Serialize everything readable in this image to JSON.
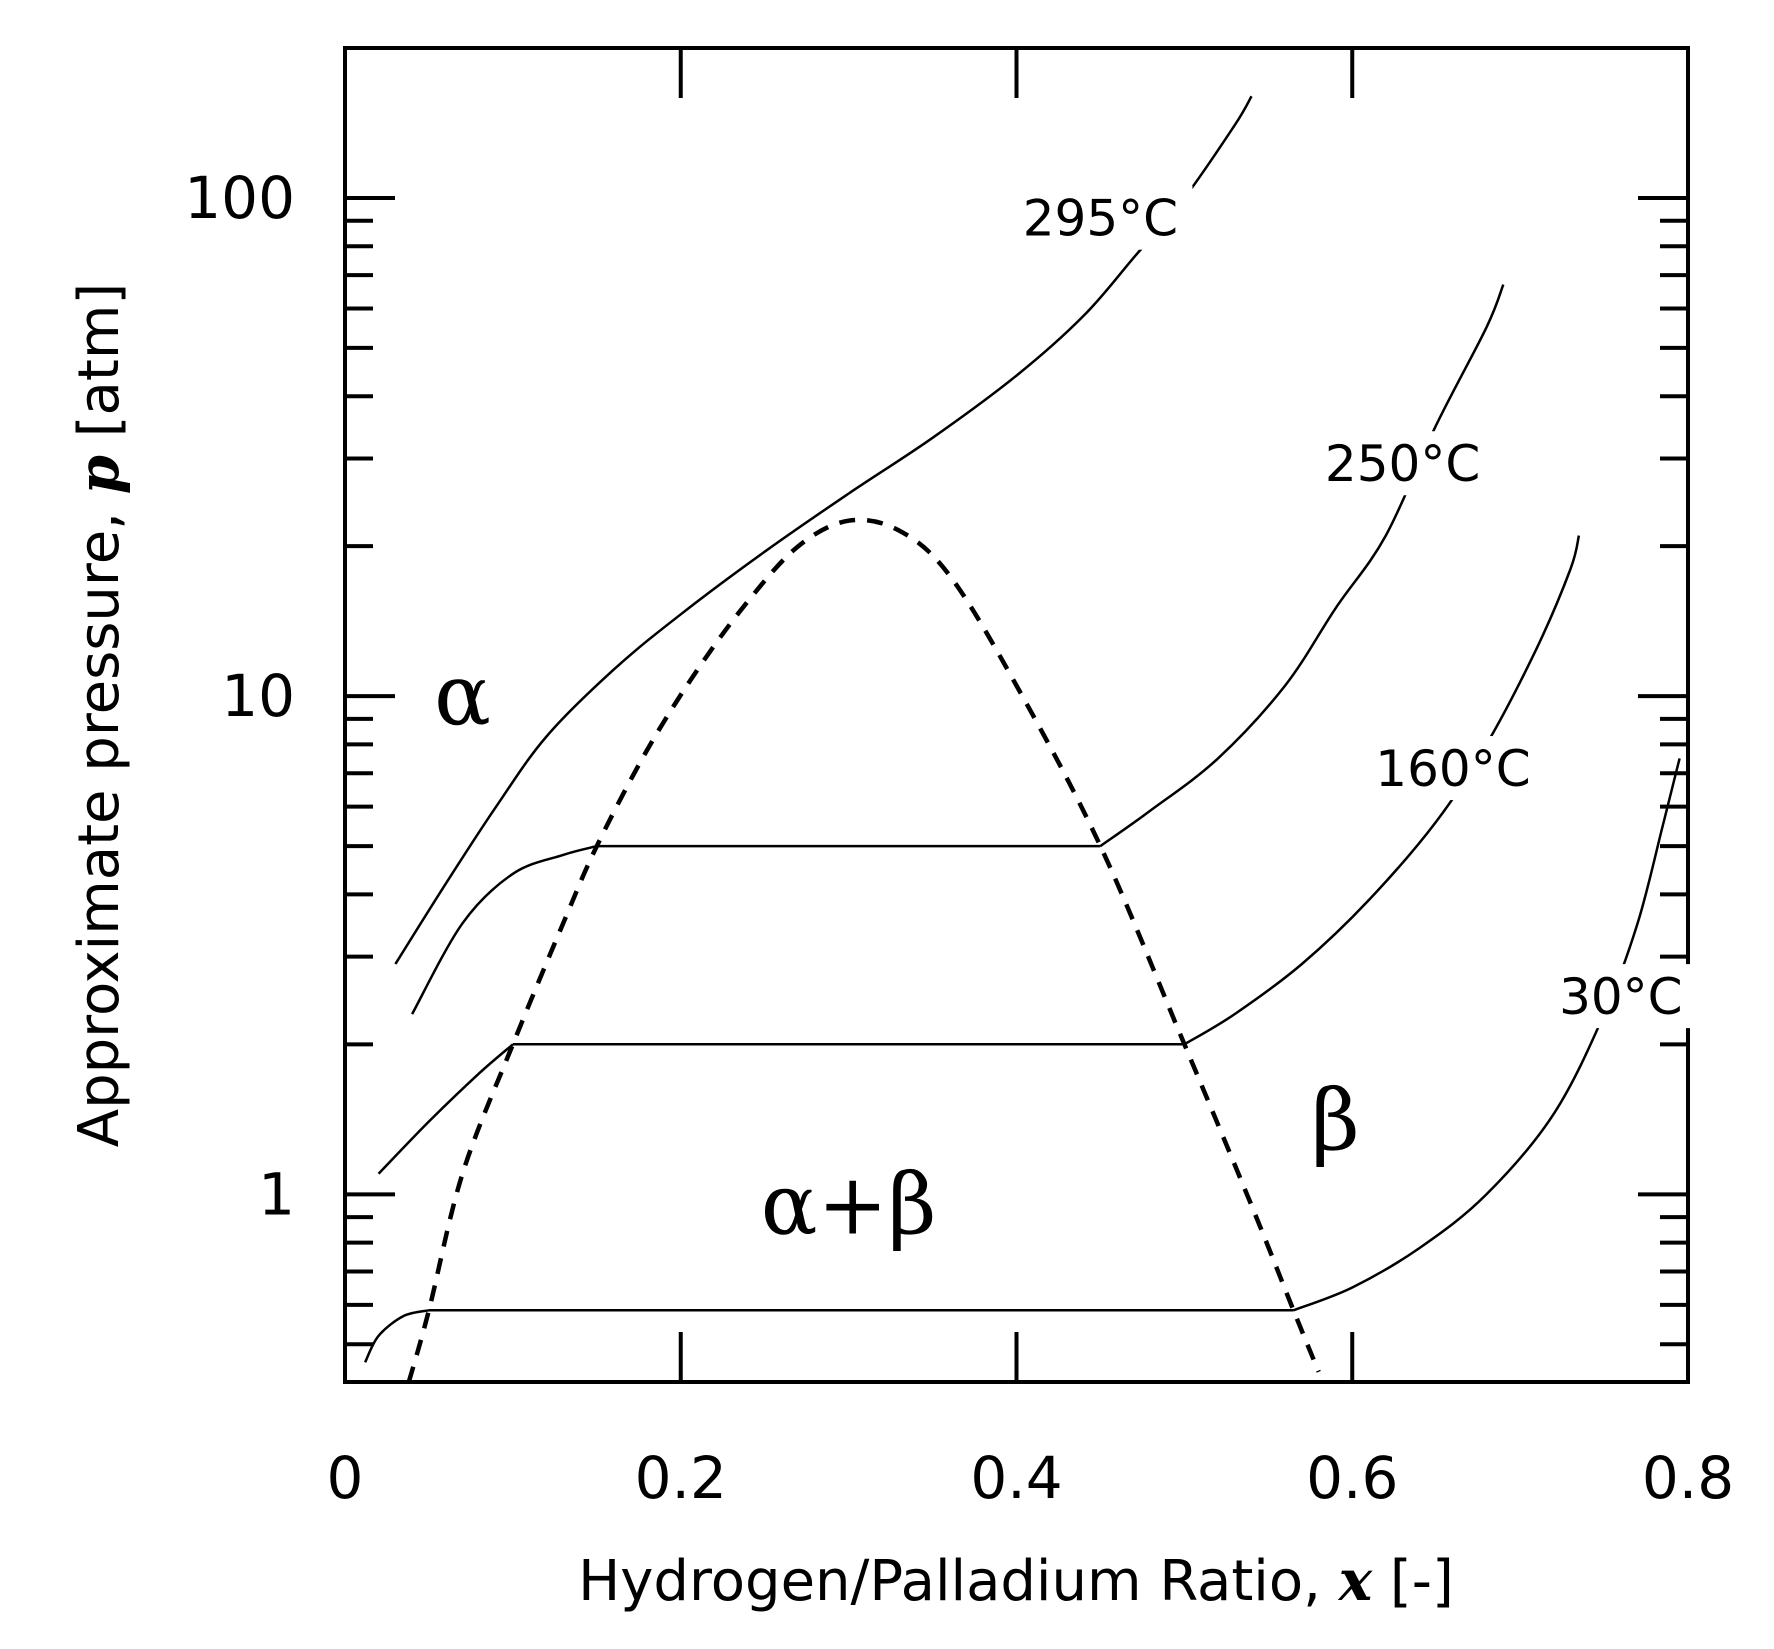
{
  "chart_data": {
    "type": "line",
    "xlabel": {
      "text": "Hydrogen/Palladium Ratio, ",
      "var": "x",
      "unit": " [-]"
    },
    "ylabel": {
      "text": "Approximate pressure, ",
      "var": "p",
      "unit": " [atm]"
    },
    "x_scale": "linear",
    "y_scale": "log",
    "xlim": [
      0,
      0.8
    ],
    "ylim": [
      0.42,
      200
    ],
    "x_ticks": [
      {
        "value": 0,
        "label": "0"
      },
      {
        "value": 0.2,
        "label": "0.2"
      },
      {
        "value": 0.4,
        "label": "0.4"
      },
      {
        "value": 0.6,
        "label": "0.6"
      },
      {
        "value": 0.8,
        "label": "0.8"
      }
    ],
    "y_major_ticks": [
      {
        "value": 1,
        "label": "1"
      },
      {
        "value": 10,
        "label": "10"
      },
      {
        "value": 100,
        "label": "100"
      }
    ],
    "y_minor_ticks": [
      0.5,
      0.6,
      0.7,
      0.8,
      0.9,
      2,
      3,
      4,
      5,
      6,
      7,
      8,
      9,
      20,
      30,
      40,
      50,
      60,
      70,
      80,
      90
    ],
    "grid": false,
    "series": [
      {
        "name": "295°C",
        "label_at": [
          0.45,
          84
        ],
        "points": [
          [
            0.03,
            2.9
          ],
          [
            0.06,
            4.2
          ],
          [
            0.09,
            6.0
          ],
          [
            0.12,
            8.3
          ],
          [
            0.16,
            11.3
          ],
          [
            0.2,
            14.6
          ],
          [
            0.25,
            19.5
          ],
          [
            0.3,
            25.5
          ],
          [
            0.35,
            33
          ],
          [
            0.4,
            44
          ],
          [
            0.44,
            58
          ],
          [
            0.47,
            76
          ],
          [
            0.5,
            100
          ],
          [
            0.53,
            140
          ],
          [
            0.54,
            160
          ]
        ]
      },
      {
        "name": "250°C",
        "label_at": [
          0.63,
          27
        ],
        "points": [
          [
            0.04,
            2.3
          ],
          [
            0.07,
            3.5
          ],
          [
            0.1,
            4.4
          ],
          [
            0.13,
            4.8
          ],
          [
            0.15,
            5.0
          ],
          [
            0.45,
            5.0
          ],
          [
            0.48,
            5.9
          ],
          [
            0.52,
            7.5
          ],
          [
            0.56,
            10.5
          ],
          [
            0.59,
            15
          ],
          [
            0.62,
            21
          ],
          [
            0.65,
            35
          ],
          [
            0.68,
            55
          ],
          [
            0.69,
            67
          ]
        ]
      },
      {
        "name": "160°C",
        "label_at": [
          0.66,
          6.6
        ],
        "points": [
          [
            0.02,
            1.1
          ],
          [
            0.05,
            1.4
          ],
          [
            0.08,
            1.75
          ],
          [
            0.1,
            2.0
          ],
          [
            0.5,
            2.0
          ],
          [
            0.53,
            2.3
          ],
          [
            0.57,
            2.9
          ],
          [
            0.61,
            3.9
          ],
          [
            0.65,
            5.6
          ],
          [
            0.68,
            8.0
          ],
          [
            0.71,
            12.5
          ],
          [
            0.73,
            18
          ],
          [
            0.735,
            21
          ]
        ]
      },
      {
        "name": "30°C",
        "label_at": [
          0.76,
          2.3
        ],
        "points": [
          [
            0.012,
            0.46
          ],
          [
            0.02,
            0.52
          ],
          [
            0.035,
            0.57
          ],
          [
            0.05,
            0.585
          ],
          [
            0.565,
            0.585
          ],
          [
            0.6,
            0.65
          ],
          [
            0.64,
            0.78
          ],
          [
            0.68,
            1.0
          ],
          [
            0.72,
            1.45
          ],
          [
            0.75,
            2.3
          ],
          [
            0.77,
            3.5
          ],
          [
            0.785,
            5.5
          ],
          [
            0.795,
            7.5
          ]
        ]
      },
      {
        "name": "phase boundary",
        "style": "dashed",
        "points": [
          [
            0.038,
            0.42
          ],
          [
            0.05,
            0.585
          ],
          [
            0.07,
            1.1
          ],
          [
            0.1,
            2.0
          ],
          [
            0.13,
            3.5
          ],
          [
            0.15,
            5.0
          ],
          [
            0.18,
            7.8
          ],
          [
            0.21,
            11.3
          ],
          [
            0.24,
            15.5
          ],
          [
            0.27,
            20
          ],
          [
            0.3,
            22.5
          ],
          [
            0.33,
            21.5
          ],
          [
            0.36,
            17.5
          ],
          [
            0.4,
            10.5
          ],
          [
            0.45,
            5.0
          ],
          [
            0.5,
            2.0
          ],
          [
            0.54,
            0.95
          ],
          [
            0.565,
            0.585
          ],
          [
            0.58,
            0.44
          ]
        ]
      }
    ],
    "annotations": [
      {
        "text": "α",
        "x": 0.07,
        "y": 10
      },
      {
        "text": "α+β",
        "x": 0.3,
        "y": 0.95
      },
      {
        "text": "β",
        "x": 0.59,
        "y": 1.4
      }
    ]
  }
}
